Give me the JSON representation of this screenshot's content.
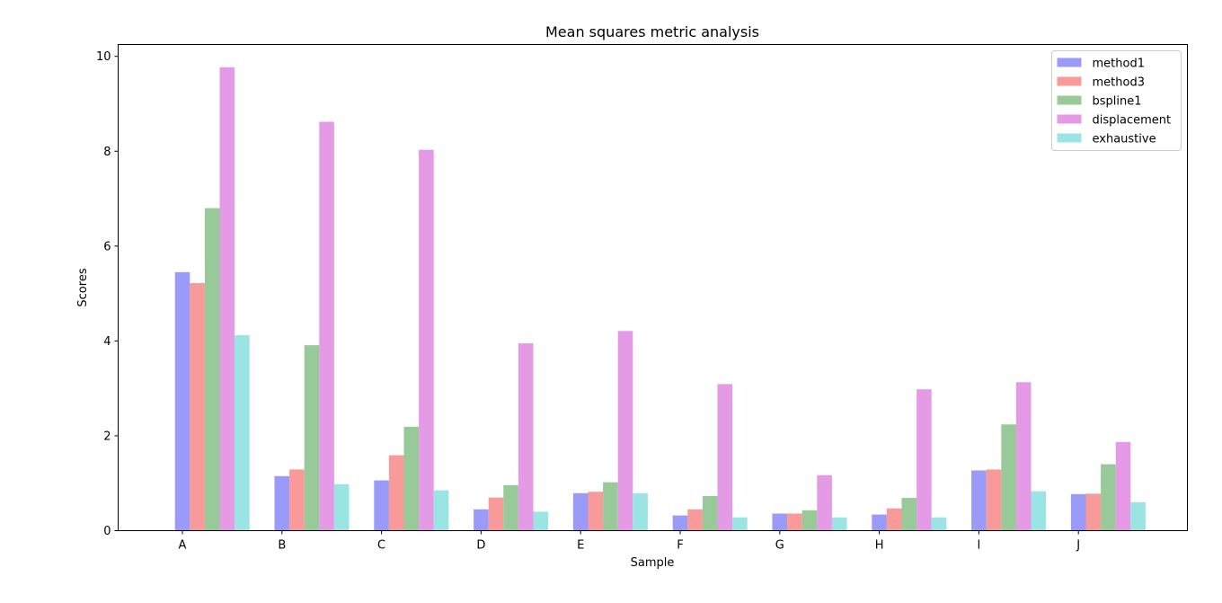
{
  "chart_data": {
    "type": "bar",
    "title": "Mean squares metric analysis",
    "xlabel": "Sample",
    "ylabel": "Scores",
    "ylim": [
      0,
      10.25
    ],
    "yticks": [
      0,
      2,
      4,
      6,
      8,
      10
    ],
    "grid": false,
    "legend_position": "top-right",
    "categories": [
      "A",
      "B",
      "C",
      "D",
      "E",
      "F",
      "G",
      "H",
      "I",
      "J"
    ],
    "series": [
      {
        "name": "method1",
        "color": "#9a9af8",
        "values": [
          5.45,
          1.15,
          1.06,
          0.45,
          0.79,
          0.32,
          0.36,
          0.34,
          1.27,
          0.77
        ]
      },
      {
        "name": "method3",
        "color": "#f89a9a",
        "values": [
          5.22,
          1.29,
          1.59,
          0.7,
          0.82,
          0.45,
          0.36,
          0.47,
          1.29,
          0.78
        ]
      },
      {
        "name": "bspline1",
        "color": "#98c998",
        "values": [
          6.8,
          3.91,
          2.19,
          0.96,
          1.02,
          0.73,
          0.43,
          0.69,
          2.24,
          1.4
        ]
      },
      {
        "name": "displacement",
        "color": "#e59ae5",
        "values": [
          9.77,
          8.62,
          8.03,
          3.95,
          4.21,
          3.09,
          1.17,
          2.98,
          3.13,
          1.87
        ]
      },
      {
        "name": "exhaustive",
        "color": "#9ae4e4",
        "values": [
          4.12,
          0.98,
          0.85,
          0.4,
          0.79,
          0.28,
          0.28,
          0.28,
          0.83,
          0.6
        ]
      }
    ]
  }
}
